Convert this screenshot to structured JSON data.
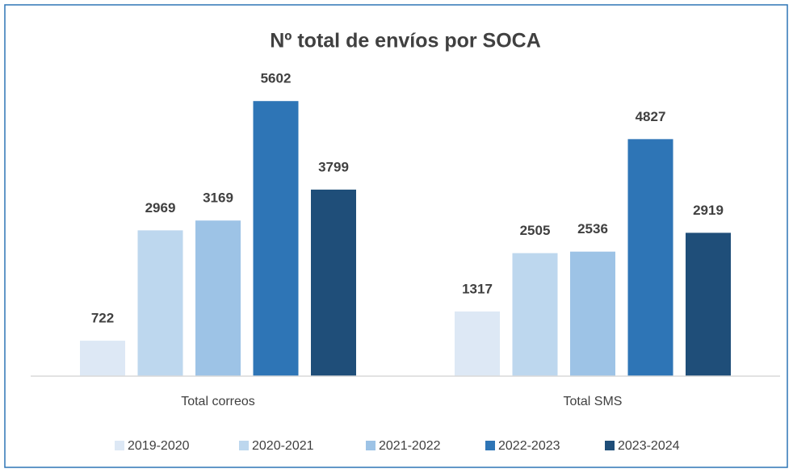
{
  "chart_data": {
    "type": "bar",
    "title": "Nº total de envíos por SOCA",
    "categories": [
      "Total correos",
      "Total SMS"
    ],
    "series": [
      {
        "name": "2019-2020",
        "color": "#dde8f5",
        "values": [
          722,
          1317
        ]
      },
      {
        "name": "2020-2021",
        "color": "#bdd7ee",
        "values": [
          2969,
          2505
        ]
      },
      {
        "name": "2021-2022",
        "color": "#9dc3e6",
        "values": [
          3169,
          2536
        ]
      },
      {
        "name": "2022-2023",
        "color": "#2e75b6",
        "values": [
          5602,
          4827
        ]
      },
      {
        "name": "2023-2024",
        "color": "#1f4e79",
        "values": [
          3799,
          2919
        ]
      }
    ],
    "ylim": [
      0,
      6000
    ],
    "legend": "bottom"
  }
}
